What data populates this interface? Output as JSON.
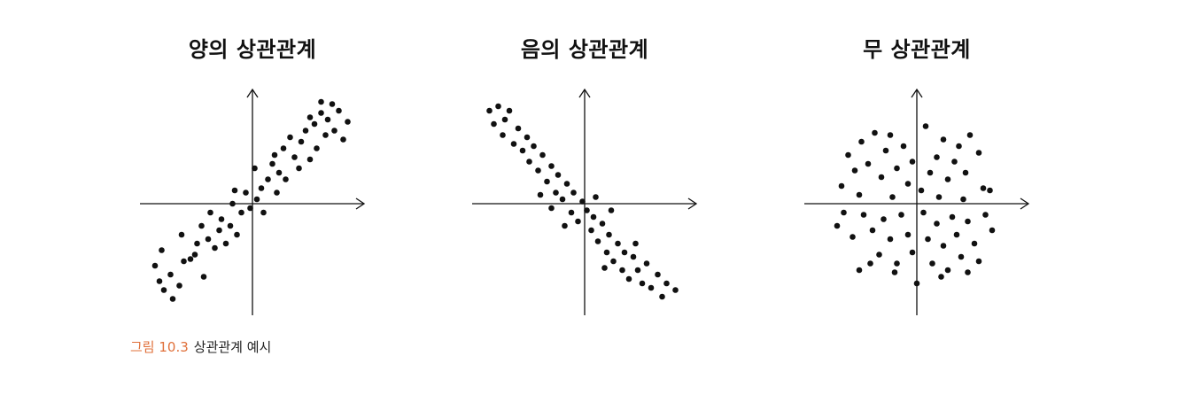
{
  "chart_data": [
    {
      "type": "scatter",
      "title": "양의 상관관계",
      "xlim": [
        -5,
        5
      ],
      "ylim": [
        -5,
        5
      ],
      "axes": "crossing-at-origin",
      "grid": false,
      "tick_labels": false,
      "point_color": "#111111",
      "points": [
        [
          -4.4,
          -2.8
        ],
        [
          -4.1,
          -2.1
        ],
        [
          -4.2,
          -3.5
        ],
        [
          -4.0,
          -3.9
        ],
        [
          -3.7,
          -3.2
        ],
        [
          -3.3,
          -3.7
        ],
        [
          -3.1,
          -2.6
        ],
        [
          -3.2,
          -1.4
        ],
        [
          -2.8,
          -2.5
        ],
        [
          -2.6,
          -2.3
        ],
        [
          -2.5,
          -1.8
        ],
        [
          -2.3,
          -1.0
        ],
        [
          -2.0,
          -1.6
        ],
        [
          -1.9,
          -0.4
        ],
        [
          -1.7,
          -2.0
        ],
        [
          -1.5,
          -1.2
        ],
        [
          -1.4,
          -0.7
        ],
        [
          -1.2,
          -1.8
        ],
        [
          -1.0,
          -1.0
        ],
        [
          -0.9,
          0.0
        ],
        [
          -0.7,
          -1.4
        ],
        [
          -0.5,
          -0.4
        ],
        [
          -0.3,
          0.5
        ],
        [
          -0.1,
          -0.2
        ],
        [
          0.1,
          1.6
        ],
        [
          0.2,
          0.2
        ],
        [
          0.4,
          0.7
        ],
        [
          0.5,
          -0.4
        ],
        [
          0.7,
          1.1
        ],
        [
          0.9,
          1.8
        ],
        [
          1.1,
          0.5
        ],
        [
          1.2,
          1.4
        ],
        [
          1.4,
          2.5
        ],
        [
          1.5,
          1.1
        ],
        [
          1.7,
          3.0
        ],
        [
          1.9,
          2.1
        ],
        [
          2.1,
          1.6
        ],
        [
          2.2,
          2.8
        ],
        [
          2.4,
          3.3
        ],
        [
          2.6,
          2.0
        ],
        [
          2.8,
          3.6
        ],
        [
          2.9,
          2.5
        ],
        [
          3.1,
          4.1
        ],
        [
          3.3,
          3.1
        ],
        [
          3.4,
          3.8
        ],
        [
          3.6,
          4.5
        ],
        [
          3.7,
          3.3
        ],
        [
          3.9,
          4.2
        ],
        [
          4.1,
          2.9
        ],
        [
          4.3,
          3.7
        ],
        [
          2.6,
          3.9
        ],
        [
          3.1,
          4.6
        ],
        [
          -3.6,
          -4.3
        ],
        [
          -2.2,
          -3.3
        ],
        [
          -0.8,
          0.6
        ],
        [
          1.0,
          2.2
        ]
      ]
    },
    {
      "type": "scatter",
      "title": "음의 상관관계",
      "xlim": [
        -5,
        5
      ],
      "ylim": [
        -5,
        5
      ],
      "axes": "crossing-at-origin",
      "grid": false,
      "tick_labels": false,
      "point_color": "#111111",
      "points": [
        [
          -4.3,
          4.2
        ],
        [
          -4.1,
          3.6
        ],
        [
          -3.9,
          4.4
        ],
        [
          -3.6,
          3.8
        ],
        [
          -3.7,
          3.1
        ],
        [
          -3.4,
          4.2
        ],
        [
          -3.2,
          2.7
        ],
        [
          -3.0,
          3.4
        ],
        [
          -2.8,
          2.4
        ],
        [
          -2.6,
          3.0
        ],
        [
          -2.5,
          1.9
        ],
        [
          -2.3,
          2.6
        ],
        [
          -2.1,
          1.5
        ],
        [
          -1.9,
          2.2
        ],
        [
          -1.7,
          1.0
        ],
        [
          -1.5,
          1.7
        ],
        [
          -1.3,
          0.5
        ],
        [
          -1.2,
          1.3
        ],
        [
          -1.0,
          0.2
        ],
        [
          -0.8,
          0.9
        ],
        [
          -0.6,
          -0.4
        ],
        [
          -0.5,
          0.5
        ],
        [
          -0.3,
          -0.8
        ],
        [
          -0.1,
          0.1
        ],
        [
          0.1,
          -0.3
        ],
        [
          0.3,
          -1.2
        ],
        [
          0.4,
          -0.6
        ],
        [
          0.6,
          -1.7
        ],
        [
          0.8,
          -0.9
        ],
        [
          1.0,
          -2.2
        ],
        [
          1.1,
          -1.4
        ],
        [
          1.3,
          -2.6
        ],
        [
          1.5,
          -1.8
        ],
        [
          1.7,
          -3.0
        ],
        [
          1.8,
          -2.2
        ],
        [
          2.0,
          -3.4
        ],
        [
          2.2,
          -2.4
        ],
        [
          2.4,
          -3.0
        ],
        [
          2.6,
          -3.6
        ],
        [
          2.8,
          -2.7
        ],
        [
          3.0,
          -3.8
        ],
        [
          3.3,
          -3.2
        ],
        [
          3.5,
          -4.2
        ],
        [
          3.7,
          -3.6
        ],
        [
          4.1,
          -3.9
        ],
        [
          -1.5,
          -0.2
        ],
        [
          -0.9,
          -1.0
        ],
        [
          0.5,
          0.3
        ],
        [
          1.2,
          -0.3
        ],
        [
          2.3,
          -1.8
        ],
        [
          -2.0,
          0.4
        ],
        [
          0.9,
          -2.9
        ]
      ]
    },
    {
      "type": "scatter",
      "title": "무 상관관계",
      "xlim": [
        -5,
        5
      ],
      "ylim": [
        -5,
        5
      ],
      "axes": "crossing-at-origin",
      "grid": false,
      "tick_labels": false,
      "point_color": "#111111",
      "points": [
        [
          -3.1,
          2.2
        ],
        [
          -2.8,
          1.5
        ],
        [
          -2.5,
          2.8
        ],
        [
          -2.2,
          1.8
        ],
        [
          -1.9,
          3.2
        ],
        [
          -1.6,
          1.2
        ],
        [
          -1.4,
          2.4
        ],
        [
          -1.2,
          3.1
        ],
        [
          -0.9,
          1.6
        ],
        [
          -0.6,
          2.6
        ],
        [
          -0.4,
          0.9
        ],
        [
          -0.2,
          1.9
        ],
        [
          0.4,
          3.5
        ],
        [
          0.6,
          1.4
        ],
        [
          0.9,
          2.1
        ],
        [
          1.2,
          2.9
        ],
        [
          1.4,
          1.1
        ],
        [
          1.7,
          1.9
        ],
        [
          1.9,
          2.6
        ],
        [
          2.2,
          1.4
        ],
        [
          2.4,
          3.1
        ],
        [
          2.8,
          2.3
        ],
        [
          3.0,
          0.7
        ],
        [
          3.3,
          0.6
        ],
        [
          -3.4,
          0.8
        ],
        [
          -2.6,
          0.4
        ],
        [
          -1.1,
          0.3
        ],
        [
          0.2,
          0.6
        ],
        [
          1.0,
          0.3
        ],
        [
          2.1,
          0.2
        ],
        [
          -3.3,
          -0.4
        ],
        [
          -3.6,
          -1.0
        ],
        [
          -2.9,
          -1.5
        ],
        [
          -2.4,
          -0.5
        ],
        [
          -2.0,
          -1.2
        ],
        [
          -1.7,
          -2.3
        ],
        [
          -1.5,
          -0.7
        ],
        [
          -1.2,
          -1.6
        ],
        [
          -0.9,
          -2.7
        ],
        [
          -0.7,
          -0.5
        ],
        [
          -0.4,
          -1.4
        ],
        [
          -0.2,
          -2.2
        ],
        [
          0.3,
          -0.4
        ],
        [
          0.5,
          -1.6
        ],
        [
          0.7,
          -2.7
        ],
        [
          0.9,
          -0.9
        ],
        [
          1.2,
          -1.9
        ],
        [
          1.4,
          -3.0
        ],
        [
          1.6,
          -0.6
        ],
        [
          1.8,
          -1.4
        ],
        [
          2.0,
          -2.4
        ],
        [
          2.3,
          -0.8
        ],
        [
          2.6,
          -1.8
        ],
        [
          2.8,
          -2.6
        ],
        [
          3.1,
          -0.5
        ],
        [
          3.4,
          -1.2
        ],
        [
          -2.1,
          -2.7
        ],
        [
          -1.0,
          -3.1
        ],
        [
          0.0,
          -3.6
        ],
        [
          1.1,
          -3.3
        ],
        [
          2.3,
          -3.1
        ],
        [
          -2.6,
          -3.0
        ]
      ]
    }
  ],
  "caption": {
    "label": "그림 10.3",
    "text": "상관관계 예시"
  },
  "colors": {
    "caption_label": "#e0703a",
    "axis": "#111111",
    "point": "#111111"
  }
}
